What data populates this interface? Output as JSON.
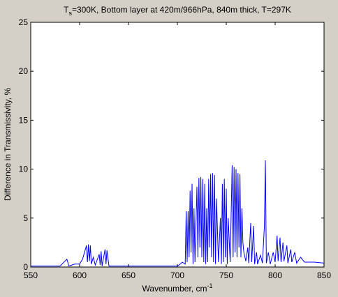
{
  "chart_data": {
    "type": "line",
    "title": {
      "symbol": "T",
      "subscript": "s",
      "rest": "=300K, Bottom layer at 420m/966hPa, 840m thick, T=297K"
    },
    "xlabel": {
      "text": "Wavenumber, cm",
      "superscript": "-1"
    },
    "ylabel": "Difference in Transmissivity, %",
    "xlim": [
      550,
      850
    ],
    "xticks": [
      550,
      600,
      650,
      700,
      750,
      800,
      850
    ],
    "ylim": [
      0,
      25
    ],
    "yticks": [
      0,
      5,
      10,
      15,
      20,
      25
    ],
    "grid": false,
    "series": [
      {
        "color": "#0000ff",
        "x": [
          550,
          560,
          570,
          580,
          587,
          589,
          595,
          600,
          603,
          605,
          607,
          608,
          609,
          610,
          611,
          612,
          614,
          616,
          620,
          621,
          622,
          623,
          626,
          627,
          628,
          630,
          640,
          660,
          680,
          700,
          703,
          705,
          708,
          709,
          710,
          711,
          712,
          713,
          714,
          715,
          716,
          717,
          718,
          720,
          721,
          722,
          723,
          724,
          725,
          726,
          727,
          728,
          729,
          730,
          731,
          732,
          733,
          734,
          735,
          736,
          737,
          738,
          739,
          740,
          742,
          744,
          745,
          746,
          747,
          748,
          749,
          750,
          751,
          752,
          754,
          756,
          757,
          758,
          759,
          760,
          761,
          762,
          763,
          764,
          765,
          766,
          767,
          768,
          770,
          772,
          773,
          775,
          776,
          778,
          779,
          781,
          782,
          785,
          787,
          789,
          790,
          791,
          793,
          795,
          798,
          800,
          802,
          803,
          805,
          806,
          808,
          809,
          812,
          813,
          816,
          817,
          820,
          822,
          826,
          830,
          840,
          850
        ],
        "values": [
          0.1,
          0.1,
          0.1,
          0.1,
          0.8,
          0.1,
          0.3,
          0.3,
          0.8,
          1.5,
          2.2,
          0.5,
          2.3,
          0.6,
          2.2,
          0.3,
          1.0,
          0.2,
          1.3,
          0.2,
          1.6,
          0.1,
          1.8,
          0.3,
          1.7,
          0.1,
          0.1,
          0.1,
          0.1,
          0.1,
          0.3,
          0.5,
          0.3,
          5.7,
          0.5,
          5.7,
          1.0,
          7.8,
          1.5,
          8.5,
          0.3,
          6.0,
          0.5,
          8.2,
          1.0,
          9.1,
          2.0,
          9.2,
          1.0,
          9.0,
          0.5,
          8.5,
          0.3,
          6.0,
          0.5,
          9.0,
          2.0,
          9.5,
          1.0,
          9.6,
          0.5,
          9.4,
          0.3,
          7.0,
          0.5,
          5.0,
          0.3,
          8.5,
          0.5,
          9.0,
          1.0,
          8.0,
          0.3,
          5.0,
          0.5,
          10.4,
          1.0,
          10.2,
          1.5,
          10.0,
          1.0,
          9.6,
          2.0,
          9.5,
          1.0,
          6.0,
          2.5,
          1.5,
          0.6,
          2.0,
          0.4,
          4.5,
          0.5,
          4.2,
          0.3,
          1.5,
          0.3,
          1.2,
          0.4,
          4.2,
          10.9,
          0.4,
          1.5,
          0.3,
          1.5,
          0.5,
          3.2,
          0.6,
          3.0,
          0.5,
          2.5,
          0.6,
          2.2,
          0.4,
          1.8,
          0.5,
          1.5,
          0.4,
          1.0,
          0.5,
          0.5,
          0.4
        ]
      }
    ]
  }
}
